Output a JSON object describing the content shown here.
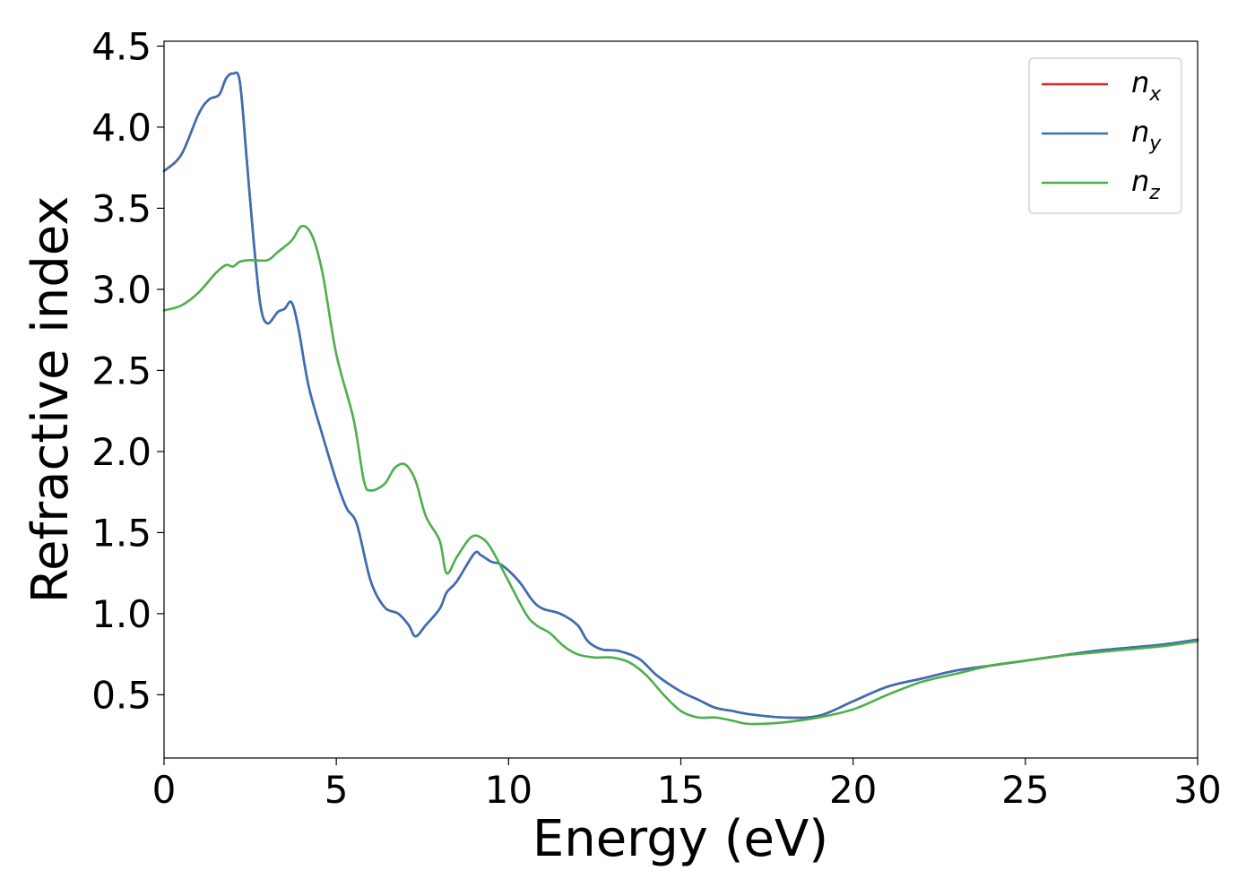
{
  "chart_data": {
    "type": "line",
    "xlabel": "Energy (eV)",
    "ylabel": "Refractive index",
    "xlim": [
      0,
      30
    ],
    "ylim": [
      0.11,
      4.53
    ],
    "xticks": [
      0,
      5,
      10,
      15,
      20,
      25,
      30
    ],
    "yticks": [
      0.5,
      1.0,
      1.5,
      2.0,
      2.5,
      3.0,
      3.5,
      4.0,
      4.5
    ],
    "xtick_labels": [
      "0",
      "5",
      "10",
      "15",
      "20",
      "25",
      "30"
    ],
    "ytick_labels": [
      "0.5",
      "1.0",
      "1.5",
      "2.0",
      "2.5",
      "3.0",
      "3.5",
      "4.0",
      "4.5"
    ],
    "grid": false,
    "legend_position": "top-right",
    "series": [
      {
        "name": "n_x",
        "label_base": "n",
        "label_sub": "x",
        "color": "#d62728",
        "x": [
          0,
          0.5,
          1,
          1.3,
          1.6,
          1.8,
          2,
          2.2,
          2.4,
          2.6,
          2.8,
          3,
          3.3,
          3.5,
          3.7,
          3.9,
          4.2,
          4.6,
          5,
          5.3,
          5.6,
          6,
          6.4,
          6.8,
          7.1,
          7.3,
          7.6,
          8,
          8.2,
          8.5,
          9,
          9.2,
          9.5,
          9.8,
          10.3,
          10.7,
          11,
          11.5,
          12,
          12.3,
          12.7,
          13.2,
          13.8,
          14.3,
          15,
          15.5,
          16,
          16.5,
          17,
          18,
          19,
          20,
          21,
          22,
          23,
          24,
          25,
          26,
          27,
          28,
          29,
          30
        ],
        "y": [
          3.73,
          3.83,
          4.08,
          4.17,
          4.2,
          4.3,
          4.33,
          4.28,
          3.8,
          3.3,
          2.9,
          2.79,
          2.86,
          2.88,
          2.92,
          2.76,
          2.4,
          2.1,
          1.82,
          1.65,
          1.55,
          1.2,
          1.04,
          1.0,
          0.93,
          0.86,
          0.93,
          1.03,
          1.13,
          1.2,
          1.37,
          1.36,
          1.32,
          1.3,
          1.2,
          1.08,
          1.03,
          1.0,
          0.93,
          0.83,
          0.78,
          0.77,
          0.72,
          0.62,
          0.52,
          0.47,
          0.42,
          0.4,
          0.38,
          0.36,
          0.37,
          0.46,
          0.55,
          0.6,
          0.65,
          0.68,
          0.71,
          0.74,
          0.77,
          0.79,
          0.81,
          0.84
        ]
      },
      {
        "name": "n_y",
        "label_base": "n",
        "label_sub": "y",
        "color": "#3a6eb5",
        "x": [
          0,
          0.5,
          1,
          1.3,
          1.6,
          1.8,
          2,
          2.2,
          2.4,
          2.6,
          2.8,
          3,
          3.3,
          3.5,
          3.7,
          3.9,
          4.2,
          4.6,
          5,
          5.3,
          5.6,
          6,
          6.4,
          6.8,
          7.1,
          7.3,
          7.6,
          8,
          8.2,
          8.5,
          9,
          9.2,
          9.5,
          9.8,
          10.3,
          10.7,
          11,
          11.5,
          12,
          12.3,
          12.7,
          13.2,
          13.8,
          14.3,
          15,
          15.5,
          16,
          16.5,
          17,
          18,
          19,
          20,
          21,
          22,
          23,
          24,
          25,
          26,
          27,
          28,
          29,
          30
        ],
        "y": [
          3.73,
          3.83,
          4.08,
          4.17,
          4.2,
          4.3,
          4.33,
          4.28,
          3.8,
          3.3,
          2.9,
          2.79,
          2.86,
          2.88,
          2.92,
          2.76,
          2.4,
          2.1,
          1.82,
          1.65,
          1.55,
          1.2,
          1.04,
          1.0,
          0.93,
          0.86,
          0.93,
          1.03,
          1.13,
          1.2,
          1.37,
          1.36,
          1.32,
          1.3,
          1.2,
          1.08,
          1.03,
          1.0,
          0.93,
          0.83,
          0.78,
          0.77,
          0.72,
          0.62,
          0.52,
          0.47,
          0.42,
          0.4,
          0.38,
          0.36,
          0.37,
          0.46,
          0.55,
          0.6,
          0.65,
          0.68,
          0.71,
          0.74,
          0.77,
          0.79,
          0.81,
          0.84
        ]
      },
      {
        "name": "n_z",
        "label_base": "n",
        "label_sub": "z",
        "color": "#4daf4a",
        "x": [
          0,
          0.5,
          1,
          1.5,
          1.8,
          2,
          2.2,
          2.5,
          3,
          3.3,
          3.7,
          4,
          4.3,
          4.6,
          5,
          5.5,
          5.8,
          6,
          6.4,
          6.7,
          7,
          7.3,
          7.6,
          8,
          8.2,
          8.5,
          8.9,
          9.2,
          9.5,
          10,
          10.5,
          10.8,
          11.2,
          11.6,
          12,
          12.5,
          13,
          13.5,
          14,
          14.5,
          15,
          15.5,
          16,
          16.5,
          17,
          18,
          19,
          20,
          21,
          22,
          23,
          24,
          25,
          26,
          27,
          28,
          29,
          30
        ],
        "y": [
          2.87,
          2.9,
          2.98,
          3.1,
          3.15,
          3.14,
          3.17,
          3.18,
          3.18,
          3.23,
          3.3,
          3.39,
          3.33,
          3.1,
          2.6,
          2.2,
          1.82,
          1.76,
          1.8,
          1.9,
          1.92,
          1.82,
          1.6,
          1.45,
          1.25,
          1.35,
          1.47,
          1.47,
          1.4,
          1.2,
          1.0,
          0.93,
          0.88,
          0.8,
          0.75,
          0.73,
          0.73,
          0.7,
          0.62,
          0.5,
          0.4,
          0.36,
          0.36,
          0.34,
          0.32,
          0.33,
          0.36,
          0.41,
          0.5,
          0.58,
          0.63,
          0.68,
          0.71,
          0.74,
          0.76,
          0.78,
          0.8,
          0.83
        ]
      }
    ]
  }
}
